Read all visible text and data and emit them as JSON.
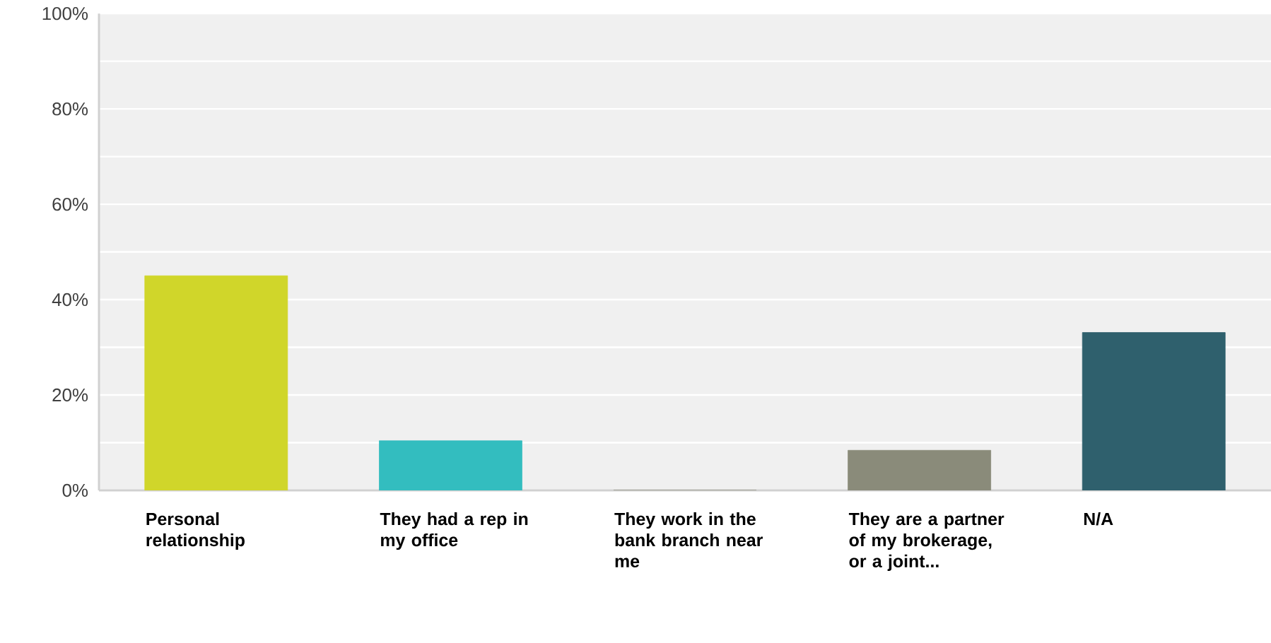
{
  "chart_data": {
    "type": "bar",
    "categories": [
      "Personal relationship",
      "They had a rep in my office",
      "They work in the bank branch near me",
      "They are a partner of my brokerage, or a joint...",
      "N/A"
    ],
    "values": [
      45.0,
      10.4,
      0,
      8.4,
      33.1
    ],
    "colors": [
      "#d0d62a",
      "#33bdbf",
      "#8a8b7a",
      "#8a8b7a",
      "#2f606d"
    ],
    "ylim": [
      0,
      100
    ],
    "yticks": [
      {
        "value": 0,
        "label": "0%"
      },
      {
        "value": 10,
        "label": null
      },
      {
        "value": 20,
        "label": "20%"
      },
      {
        "value": 30,
        "label": null
      },
      {
        "value": 40,
        "label": "40%"
      },
      {
        "value": 50,
        "label": null
      },
      {
        "value": 60,
        "label": "60%"
      },
      {
        "value": 70,
        "label": null
      },
      {
        "value": 80,
        "label": "80%"
      },
      {
        "value": 90,
        "label": null
      },
      {
        "value": 100,
        "label": "100%"
      }
    ],
    "grid": "y"
  }
}
